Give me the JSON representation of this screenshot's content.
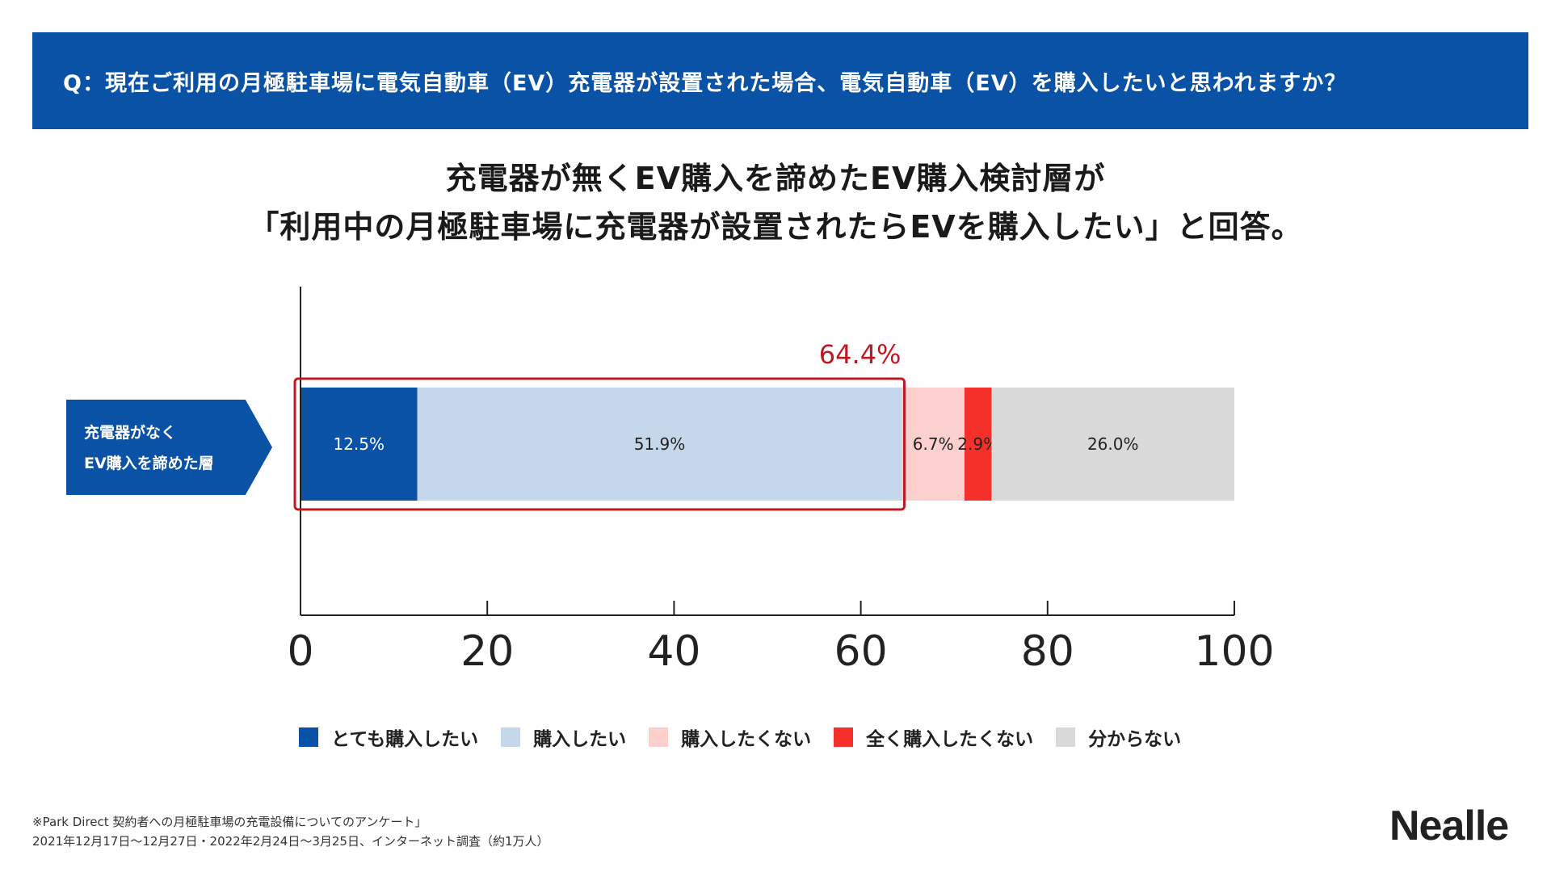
{
  "question": "Q：現在ご利用の月極駐車場に電気自動車（EV）充電器が設置された場合、電気自動車（EV）を購入したいと思われますか？",
  "headline": {
    "line1": "充電器が無くEV購入を諦めたEV購入検討層が",
    "line2": "「利用中の月極駐車場に充電器が設置されたらEVを購入したい」と回答。"
  },
  "row_label": {
    "line1": "充電器がなく",
    "line2": "EV購入を諦めた層"
  },
  "chart_data": {
    "type": "bar",
    "orientation": "horizontal",
    "stacked": true,
    "categories": [
      "充電器がなくEV購入を諦めた層"
    ],
    "series": [
      {
        "name": "とても購入したい",
        "values": [
          12.5
        ],
        "label": "12.5%",
        "color": "#0a52a5",
        "label_color": "#ffffff"
      },
      {
        "name": "購入したい",
        "values": [
          51.9
        ],
        "label": "51.9%",
        "color": "#c5d7ea",
        "label_color": "#222222"
      },
      {
        "name": "購入したくない",
        "values": [
          6.7
        ],
        "label": "6.7%",
        "color": "#fdd0d0",
        "label_color": "#222222"
      },
      {
        "name": "全く購入したくない",
        "values": [
          2.9
        ],
        "label": "2.9%",
        "color": "#f5302a",
        "label_color": "#222222"
      },
      {
        "name": "分からない",
        "values": [
          26.0
        ],
        "label": "26.0%",
        "color": "#d9d9d9",
        "label_color": "#222222"
      }
    ],
    "xlim": [
      0,
      100
    ],
    "xticks": [
      0,
      20,
      40,
      60,
      80,
      100
    ],
    "xtick_labels": [
      "0",
      "20",
      "40",
      "60",
      "80",
      "100"
    ],
    "annotation": {
      "text": "64.4%",
      "covers": [
        0,
        64.4
      ],
      "color": "#c01820"
    },
    "grid": false,
    "legend_position": "bottom"
  },
  "source": {
    "line1": "※Park Direct 契約者への月極駐車場の充電設備についてのアンケート」",
    "line2": "2021年12月17日〜12月27日・2022年2月24日〜3月25日、インターネット調査（約1万人）"
  },
  "logo": "Nealle",
  "colors": {
    "header_blue": "#0a52a5",
    "highlight_red": "#c01820"
  }
}
